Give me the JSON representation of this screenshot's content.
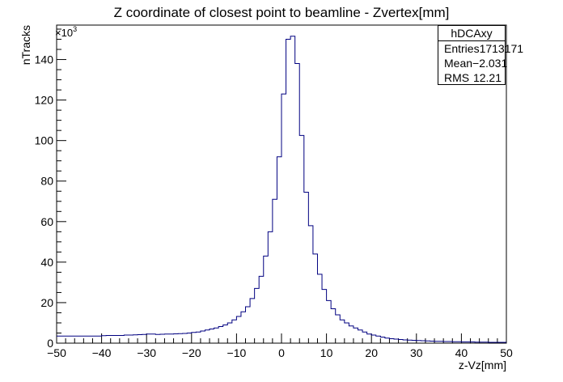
{
  "chart_data": {
    "type": "histogram",
    "title": "Z coordinate of closest point to beamline - Zvertex[mm]",
    "xlabel": "z-Vz[mm]",
    "ylabel": "nTracks",
    "y_multiplier_label": "×10",
    "y_multiplier_exp": "3",
    "xlim": [
      -50,
      50
    ],
    "ylim": [
      0,
      157
    ],
    "x_ticks": [
      -50,
      -40,
      -30,
      -20,
      -10,
      0,
      10,
      20,
      30,
      40,
      50
    ],
    "x_tick_labels": [
      "−50",
      "−40",
      "−30",
      "−20",
      "−10",
      "0",
      "10",
      "20",
      "30",
      "40",
      "50"
    ],
    "y_ticks": [
      0,
      20,
      40,
      60,
      80,
      100,
      120,
      140
    ],
    "y_tick_labels": [
      "0",
      "20",
      "40",
      "60",
      "80",
      "100",
      "120",
      "140"
    ],
    "bin_width": 1,
    "bin_edges_start": -50,
    "series": [
      {
        "name": "hDCAxy",
        "color": "#000080",
        "values": [
          3.5,
          3.5,
          3.5,
          3.5,
          3.5,
          3.5,
          3.5,
          3.5,
          3.5,
          3.5,
          3.7,
          3.8,
          3.8,
          3.8,
          3.8,
          4.0,
          4.0,
          4.1,
          4.2,
          4.3,
          4.5,
          4.5,
          4.3,
          4.4,
          4.5,
          4.5,
          4.6,
          4.7,
          4.8,
          5.0,
          5.3,
          5.5,
          6.0,
          6.5,
          7.0,
          7.5,
          8.2,
          9.0,
          10.0,
          11.5,
          13.2,
          15.5,
          18.0,
          22.0,
          27.0,
          33.0,
          43.0,
          55.0,
          71.0,
          92.0,
          123.0,
          150.0,
          151.5,
          138.0,
          102.5,
          74.5,
          58.0,
          44.0,
          34.0,
          26.5,
          21.0,
          17.0,
          14.0,
          11.5,
          10.0,
          8.5,
          7.5,
          6.5,
          5.5,
          4.5,
          4.0,
          3.5,
          3.0,
          2.5,
          2.2,
          2.0,
          1.8,
          1.6,
          1.5,
          1.4,
          1.3,
          1.2,
          1.1,
          1.0,
          0.9,
          0.9,
          0.8,
          0.8,
          0.7,
          0.7,
          0.6,
          0.6,
          0.6,
          0.5,
          0.5,
          0.5,
          0.4,
          0.4,
          0.4,
          0.4
        ]
      }
    ],
    "stats": {
      "name": "hDCAxy",
      "rows": [
        {
          "label": "Entries",
          "value": "1713171"
        },
        {
          "label": "Mean",
          "value": "−2.031"
        },
        {
          "label": "RMS",
          "value": "12.21"
        }
      ]
    }
  }
}
